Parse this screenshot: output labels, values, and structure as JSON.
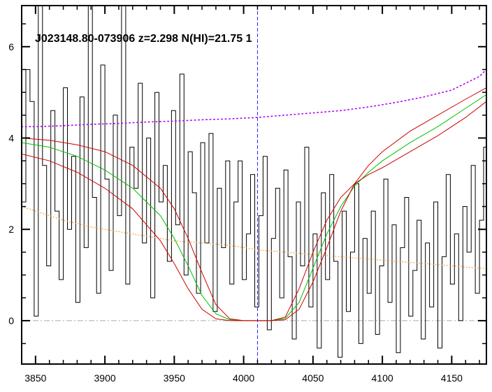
{
  "chart_data": {
    "type": "line",
    "title": "J023148.80-073906 z=2.298 N(HI)=21.75 1",
    "xlabel": "",
    "ylabel": "",
    "xlim": [
      3840,
      4175
    ],
    "ylim": [
      -0.95,
      6.9
    ],
    "x_ticks": [
      3850,
      3900,
      3950,
      4000,
      4050,
      4100,
      4150
    ],
    "y_ticks": [
      0,
      2,
      4,
      6
    ],
    "grid": false,
    "legend": "none",
    "reference_lines": {
      "zero_level": 0,
      "absorption_center_x": 4010
    },
    "colors": {
      "flux": "#000000",
      "continuum": "#b000ff",
      "error": "#ffa040",
      "dla_model": "#00c000",
      "dla_bounds": "#d00000",
      "center_line": "#2020ff",
      "zero_line": "#aaaaaa"
    },
    "series": [
      {
        "x_start": 3840,
        "x_step": 3,
        "values": [
          2.6,
          5.5,
          4.8,
          0.1,
          6.9,
          3.4,
          1.2,
          4.6,
          2.4,
          0.9,
          5.1,
          2.0,
          3.6,
          0.4,
          4.9,
          1.6,
          6.9,
          2.7,
          0.6,
          5.6,
          3.1,
          1.1,
          4.5,
          2.3,
          6.9,
          0.8,
          3.8,
          2.9,
          5.2,
          1.7,
          4.0,
          0.5,
          5.0,
          2.6,
          3.4,
          1.3,
          4.6,
          2.1,
          5.4,
          1.0,
          3.7,
          2.8,
          0.6,
          3.9,
          1.7,
          4.1,
          0.2,
          2.9,
          1.6,
          3.5,
          0.8,
          2.6,
          3.5,
          0.9,
          1.9,
          3.2,
          0.3,
          2.3,
          3.6,
          -0.2,
          1.8,
          2.9,
          0.5,
          3.3,
          1.4,
          -0.4,
          2.6,
          1.2,
          3.8,
          0.3,
          1.9,
          -0.6,
          2.8,
          0.9,
          3.2,
          1.3,
          -0.8,
          2.4,
          0.2,
          1.5,
          3.0,
          -0.5,
          1.8,
          0.6,
          2.4,
          -0.3,
          1.2,
          3.1,
          0.4,
          2.1,
          -0.7,
          1.6,
          2.7,
          0.1,
          1.1,
          2.2,
          -0.4,
          1.7,
          0.3,
          2.6,
          -0.6,
          1.4,
          3.2,
          0.8,
          1.9,
          0.0,
          2.5,
          1.5,
          3.4,
          0.6,
          2.2,
          3.8,
          1.0,
          2.8,
          0.5,
          3.1,
          1.7,
          4.1,
          0.9,
          2.6,
          3.6,
          1.4,
          4.4,
          2.3,
          0.8,
          3.9,
          2.5,
          4.6,
          1.6,
          3.2,
          5.0,
          2.0,
          3.7,
          1.1,
          4.8,
          2.6,
          3.4,
          0.7,
          4.2,
          2.9,
          5.3,
          1.8,
          3.9,
          2.4,
          4.7,
          3.0,
          1.5,
          4.3,
          2.8,
          5.0,
          3.3,
          0.3,
          4.0,
          2.6,
          -0.9,
          3.4,
          4.9,
          2.2,
          5.2
        ],
        "interpolation": "steps"
      },
      {
        "x": [
          3840,
          3850,
          3870,
          3890,
          3910,
          3930,
          3950,
          3970,
          3990,
          4010,
          4030,
          4050,
          4070,
          4090,
          4110,
          4130,
          4150,
          4170,
          4175
        ],
        "values": [
          4.25,
          4.25,
          4.27,
          4.3,
          4.32,
          4.35,
          4.37,
          4.4,
          4.42,
          4.45,
          4.5,
          4.55,
          4.6,
          4.68,
          4.78,
          4.9,
          5.05,
          5.35,
          5.5
        ],
        "interpolation": "dotted"
      },
      {
        "x": [
          3840,
          3850,
          3870,
          3890,
          3910,
          3930,
          3950,
          3970,
          3990,
          4010,
          4030,
          4050,
          4070,
          4090,
          4110,
          4130,
          4150,
          4170,
          4175
        ],
        "values": [
          2.5,
          2.4,
          2.2,
          2.05,
          1.95,
          1.85,
          1.75,
          1.7,
          1.65,
          1.55,
          1.5,
          1.45,
          1.4,
          1.35,
          1.3,
          1.25,
          1.2,
          1.15,
          1.15
        ],
        "interpolation": "dotted"
      },
      {
        "x": [
          3840,
          3860,
          3880,
          3900,
          3920,
          3940,
          3950,
          3960,
          3970,
          3980,
          3990,
          4000,
          4010,
          4020,
          4030,
          4040,
          4050,
          4060,
          4070,
          4080,
          4090,
          4100,
          4120,
          4140,
          4160,
          4175
        ],
        "values": [
          3.9,
          3.8,
          3.6,
          3.3,
          2.9,
          2.3,
          1.8,
          1.2,
          0.55,
          0.15,
          0.02,
          0.0,
          0.0,
          0.0,
          0.05,
          0.4,
          1.15,
          1.9,
          2.5,
          2.95,
          3.25,
          3.5,
          3.9,
          4.25,
          4.65,
          4.95
        ]
      },
      {
        "x": [
          3840,
          3860,
          3880,
          3900,
          3920,
          3940,
          3950,
          3960,
          3970,
          3980,
          3990,
          4000,
          4010,
          4020,
          4030,
          4040,
          4050,
          4060,
          4070,
          4080,
          4090,
          4100,
          4120,
          4140,
          4160,
          4175
        ],
        "values": [
          4.0,
          3.95,
          3.85,
          3.7,
          3.4,
          2.9,
          2.45,
          1.8,
          1.05,
          0.35,
          0.04,
          0.0,
          0.0,
          0.0,
          0.02,
          0.25,
          0.85,
          1.6,
          2.4,
          3.0,
          3.4,
          3.7,
          4.15,
          4.5,
          4.85,
          5.1
        ]
      },
      {
        "x": [
          3840,
          3860,
          3880,
          3900,
          3920,
          3940,
          3950,
          3960,
          3970,
          3980,
          3990,
          4000,
          4010,
          4020,
          4030,
          4040,
          4050,
          4060,
          4070,
          4080,
          4090,
          4100,
          4120,
          4140,
          4160,
          4175
        ],
        "values": [
          3.65,
          3.5,
          3.25,
          2.9,
          2.45,
          1.75,
          1.25,
          0.7,
          0.25,
          0.04,
          0.0,
          0.0,
          0.0,
          0.0,
          0.08,
          0.7,
          1.5,
          2.2,
          2.7,
          3.0,
          3.2,
          3.35,
          3.7,
          4.05,
          4.45,
          4.8
        ]
      }
    ]
  }
}
